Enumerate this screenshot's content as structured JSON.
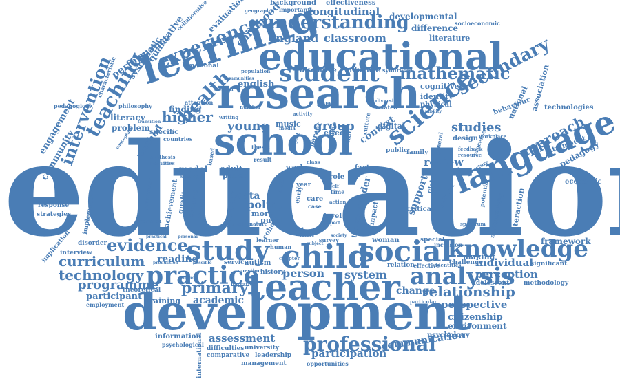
{
  "colors": {
    "word": "#4a7db5",
    "background": "#ffffff"
  },
  "words": {
    "education": "education",
    "development": "development",
    "educational": "educational",
    "research": "research",
    "learning": "learning",
    "school": "school",
    "teacher": "teacher",
    "language": "language",
    "child": "child",
    "social": "social",
    "study": "study",
    "practice": "practice",
    "student": "student",
    "science": "science",
    "knowledge": "knowledge",
    "analysis": "analysis",
    "professional": "professional",
    "experience": "experience",
    "understanding": "understanding",
    "teaching": "teaching",
    "evidence": "evidence",
    "intervention": "intervention",
    "mathematic": "mathematic",
    "secondary": "secondary",
    "health": "health",
    "curriculum": "curriculum",
    "relationship": "relationship",
    "technology": "technology",
    "primary": "primary",
    "approach": "approach",
    "england": "england",
    "classroom": "classroom",
    "longitudinal": "longitudinal",
    "higher": "higher",
    "young": "young",
    "group": "group",
    "studies": "studies",
    "review": "review",
    "programme": "programme",
    "assessment": "assessment",
    "participation": "participation",
    "communication": "communication",
    "perspective": "perspective",
    "citizenship": "citizenship",
    "environment": "environment",
    "policy": "policy",
    "data": "data",
    "person": "person",
    "system": "system",
    "change": "change",
    "academic": "academic",
    "perception": "perception",
    "individual": "individual",
    "reading": "reading",
    "participant": "participant",
    "training": "training",
    "framework": "framework",
    "pedagogy": "pedagogy",
    "english": "english",
    "finding": "finding",
    "problem": "problem",
    "literacy": "literacy",
    "engagement": "engagement",
    "community": "community",
    "performance": "performance",
    "qualitative": "qualitative",
    "systematic": "systematic",
    "childhood": "childhood",
    "evaluation": "evaluation",
    "developmental": "developmental",
    "difference": "difference",
    "literature": "literature",
    "effectiveness": "effectiveness",
    "background": "background",
    "discourse": "discourse",
    "influence": "influence",
    "cognitive": "cognitive",
    "identity": "identity",
    "physical": "physical",
    "behaviour": "behaviour",
    "national": "national",
    "association": "association",
    "technologies": "technologies",
    "digital": "digital",
    "context": "context",
    "music": "music",
    "effect": "effect",
    "method": "method",
    "model": "model",
    "adult": "adult",
    "paper": "paper",
    "work": "work",
    "more": "more",
    "pupil": "pupil",
    "gender": "gender",
    "support": "support",
    "design": "design",
    "interaction": "interaction",
    "economic": "economic",
    "attainment": "attainment",
    "making": "making",
    "significant": "significant",
    "methodology": "methodology",
    "psychology": "psychology",
    "information": "information",
    "psychological": "psychological",
    "difficulties": "difficulties",
    "comparative": "comparative",
    "leadership": "leadership",
    "management": "management",
    "opportunities": "opportunities",
    "university": "university",
    "international": "international",
    "employment": "employment",
    "theoretical": "theoretical",
    "disorder": "disorder",
    "interview": "interview",
    "implication": "implication",
    "strategies": "strategies",
    "response": "response",
    "implementation": "implementation",
    "autism": "autism",
    "history": "history",
    "woman": "woman",
    "challenge": "challenge",
    "adolescent": "adolescent",
    "pedagogical": "pedagogical",
    "characteristic": "characteristic",
    "philosophy": "philosophy",
    "specific": "specific",
    "emotional": "emotional",
    "attention": "attention",
    "cohort": "cohort",
    "service": "service",
    "care": "care",
    "critical": "critical",
    "inclusion": "inclusion",
    "special": "special",
    "quality": "quality",
    "achievement": "achievement",
    "concept": "concept",
    "different": "different",
    "control": "control",
    "level": "level",
    "theory": "theory",
    "impact": "impact",
    "role": "role",
    "factor": "factor",
    "mental": "mental",
    "outcome": "outcome",
    "public": "public",
    "general": "general",
    "family": "family",
    "processes": "processes",
    "geography": "geography",
    "important": "important",
    "socioeconomic": "socioeconomic",
    "collaborative": "collaborative",
    "conceptual": "conceptual",
    "transition": "transition",
    "ability": "ability",
    "related": "related",
    "diversity": "diversity",
    "syndrome": "syndrome",
    "countries": "countries",
    "setting": "setting",
    "activities": "activities",
    "synthesis": "synthesis",
    "number": "number",
    "writing": "writing",
    "relation": "relation",
    "effective": "effective",
    "identities": "identities",
    "particular": "particular",
    "global": "global",
    "political": "political",
    "structure": "structure",
    "potential": "potential",
    "inequality": "inequality",
    "mathematical": "mathematical",
    "spectrum": "spectrum",
    "workplace": "workplace",
    "feedback": "feedback",
    "resource": "resource",
    "disability": "disability",
    "question": "question",
    "narrative": "narrative",
    "survey": "survey",
    "learner": "learner",
    "human": "human",
    "case": "case",
    "time": "time",
    "action": "action",
    "life": "life",
    "self": "self",
    "chapter": "chapter",
    "class": "class",
    "thesis": "thesis",
    "media": "media",
    "project": "project",
    "parent": "parent",
    "nature": "nature",
    "aspect": "aspect",
    "society": "society",
    "culture": "culture",
    "result": "result",
    "personal": "personal",
    "practical": "practical",
    "production": "production",
    "possible": "possible",
    "current": "current",
    "provision": "provision",
    "government": "government",
    "computer": "computer",
    "activity": "activity",
    "population": "population",
    "communities": "communities",
    "scotland": "scotland",
    "university_small": "university",
    "based": "based",
    "need": "need",
    "future": "future",
    "subject": "subject",
    "skill": "skill",
    "year": "year",
    "early": "early"
  }
}
